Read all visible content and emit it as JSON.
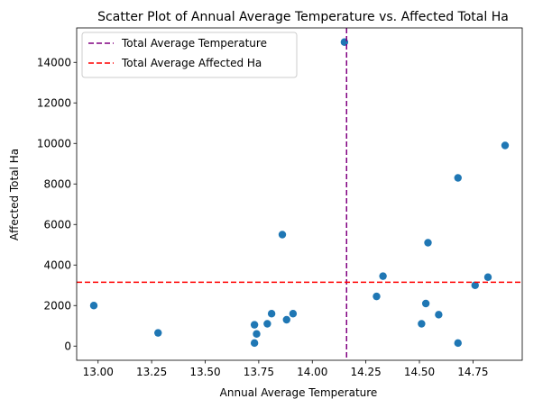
{
  "chart_data": {
    "type": "scatter",
    "title": "Scatter Plot of Annual Average Temperature vs. Affected Total Ha",
    "xlabel": "Annual Average Temperature",
    "ylabel": "Affected Total Ha",
    "xlim": [
      12.9,
      14.98
    ],
    "ylim": [
      -700,
      15700
    ],
    "xticks": [
      "13.00",
      "13.25",
      "13.50",
      "13.75",
      "14.00",
      "14.25",
      "14.50",
      "14.75"
    ],
    "xtick_values": [
      13.0,
      13.25,
      13.5,
      13.75,
      14.0,
      14.25,
      14.5,
      14.75
    ],
    "yticks": [
      "0",
      "2000",
      "4000",
      "6000",
      "8000",
      "10000",
      "12000",
      "14000"
    ],
    "ytick_values": [
      0,
      2000,
      4000,
      6000,
      8000,
      10000,
      12000,
      14000
    ],
    "grid": false,
    "legend_position": "top-left",
    "point_color": "#1f77b4",
    "points": [
      {
        "x": 12.98,
        "y": 2000
      },
      {
        "x": 13.28,
        "y": 650
      },
      {
        "x": 13.73,
        "y": 1050
      },
      {
        "x": 13.74,
        "y": 600
      },
      {
        "x": 13.73,
        "y": 150
      },
      {
        "x": 13.79,
        "y": 1100
      },
      {
        "x": 13.81,
        "y": 1600
      },
      {
        "x": 13.86,
        "y": 5500
      },
      {
        "x": 13.88,
        "y": 1300
      },
      {
        "x": 13.91,
        "y": 1600
      },
      {
        "x": 14.15,
        "y": 15000
      },
      {
        "x": 14.3,
        "y": 2450
      },
      {
        "x": 14.33,
        "y": 3450
      },
      {
        "x": 14.51,
        "y": 1100
      },
      {
        "x": 14.53,
        "y": 2100
      },
      {
        "x": 14.54,
        "y": 5100
      },
      {
        "x": 14.59,
        "y": 1550
      },
      {
        "x": 14.68,
        "y": 8300
      },
      {
        "x": 14.68,
        "y": 150
      },
      {
        "x": 14.76,
        "y": 3000
      },
      {
        "x": 14.82,
        "y": 3400
      },
      {
        "x": 14.9,
        "y": 9900
      }
    ],
    "reference_lines": [
      {
        "name": "Total Average Temperature",
        "orientation": "vertical",
        "value": 14.16,
        "color": "#800080"
      },
      {
        "name": "Total Average Affected Ha",
        "orientation": "horizontal",
        "value": 3150,
        "color": "#ff0000"
      }
    ]
  }
}
